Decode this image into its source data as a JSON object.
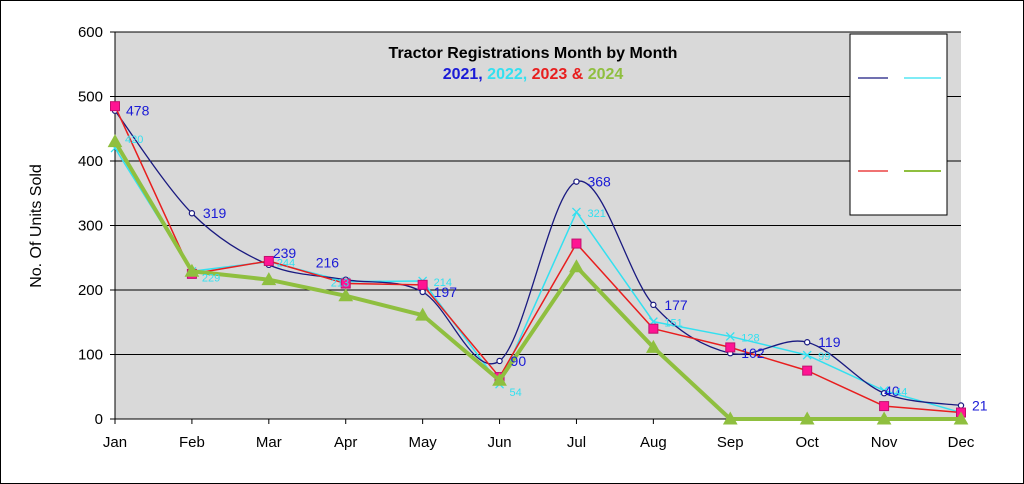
{
  "chart_data": {
    "type": "line",
    "title": "Tractor Registrations Month by Month",
    "subtitle_parts": [
      {
        "text": "2021",
        "color": "#1a1ad6"
      },
      {
        "text": ", ",
        "color": "#1a1ad6"
      },
      {
        "text": "2022",
        "color": "#33e0f0"
      },
      {
        "text": ", ",
        "color": "#33e0f0"
      },
      {
        "text": "2023",
        "color": "#e81e1e"
      },
      {
        "text": " & ",
        "color": "#e81e1e"
      },
      {
        "text": "2024",
        "color": "#8fbf3f"
      }
    ],
    "xlabel": "",
    "ylabel": "No. Of Units Sold",
    "ylim": [
      0,
      600
    ],
    "yticks": [
      0,
      100,
      200,
      300,
      400,
      500,
      600
    ],
    "categories": [
      "Jan",
      "Feb",
      "Mar",
      "Apr",
      "May",
      "Jun",
      "Jul",
      "Aug",
      "Sep",
      "Oct",
      "Nov",
      "Dec"
    ],
    "grid": true,
    "legend": "top-right",
    "series": [
      {
        "name": "2021",
        "color": "#1a1a80",
        "label_color": "#1a1ad6",
        "marker": "circle",
        "smooth": true,
        "values": [
          478,
          319,
          239,
          216,
          197,
          90,
          368,
          177,
          102,
          119,
          40,
          21
        ],
        "labels": [
          "478",
          "319",
          "239",
          "216",
          "197",
          "90",
          "368",
          "177",
          "102",
          "119",
          "40",
          "21"
        ]
      },
      {
        "name": "2022",
        "color": "#33e0f0",
        "label_color": "#33e0f0",
        "marker": "x",
        "smooth": false,
        "values": [
          420,
          229,
          244,
          213,
          214,
          54,
          321,
          151,
          128,
          99,
          44,
          10
        ],
        "labels": [
          "420",
          "229",
          "244",
          "213",
          "214",
          "54",
          "321",
          "151",
          "128",
          "99",
          "44",
          null
        ]
      },
      {
        "name": "2023",
        "color": "#e81e1e",
        "marker": "square",
        "smooth": false,
        "values": [
          485,
          225,
          245,
          210,
          208,
          65,
          272,
          140,
          111,
          75,
          20,
          10
        ]
      },
      {
        "name": "2024",
        "color": "#8fbf3f",
        "marker": "triangle",
        "smooth": false,
        "values": [
          430,
          229,
          216,
          191,
          161,
          60,
          236,
          111,
          0,
          0,
          0,
          0
        ]
      }
    ]
  }
}
